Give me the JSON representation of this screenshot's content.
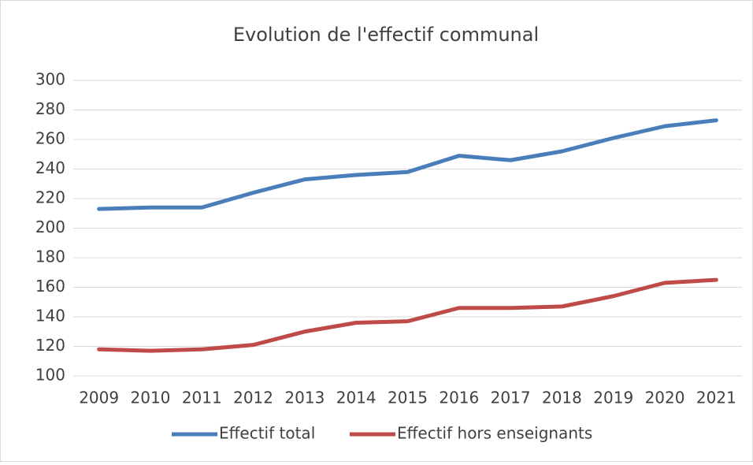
{
  "chart_data": {
    "type": "line",
    "title": "Evolution de l'effectif communal",
    "categories": [
      "2009",
      "2010",
      "2011",
      "2012",
      "2013",
      "2014",
      "2015",
      "2016",
      "2017",
      "2018",
      "2019",
      "2020",
      "2021"
    ],
    "series": [
      {
        "name": "Effectif total",
        "color": "#4a7ebb",
        "values": [
          213,
          214,
          214,
          224,
          233,
          236,
          238,
          249,
          246,
          252,
          261,
          269,
          273
        ]
      },
      {
        "name": "Effectif hors enseignants",
        "color": "#be4b48",
        "values": [
          118,
          117,
          118,
          121,
          130,
          136,
          137,
          146,
          146,
          147,
          154,
          163,
          165
        ]
      }
    ],
    "ylim": [
      100,
      300
    ],
    "yticks": [
      100,
      120,
      140,
      160,
      180,
      200,
      220,
      240,
      260,
      280,
      300
    ],
    "grid": true,
    "legend": "bottom"
  }
}
